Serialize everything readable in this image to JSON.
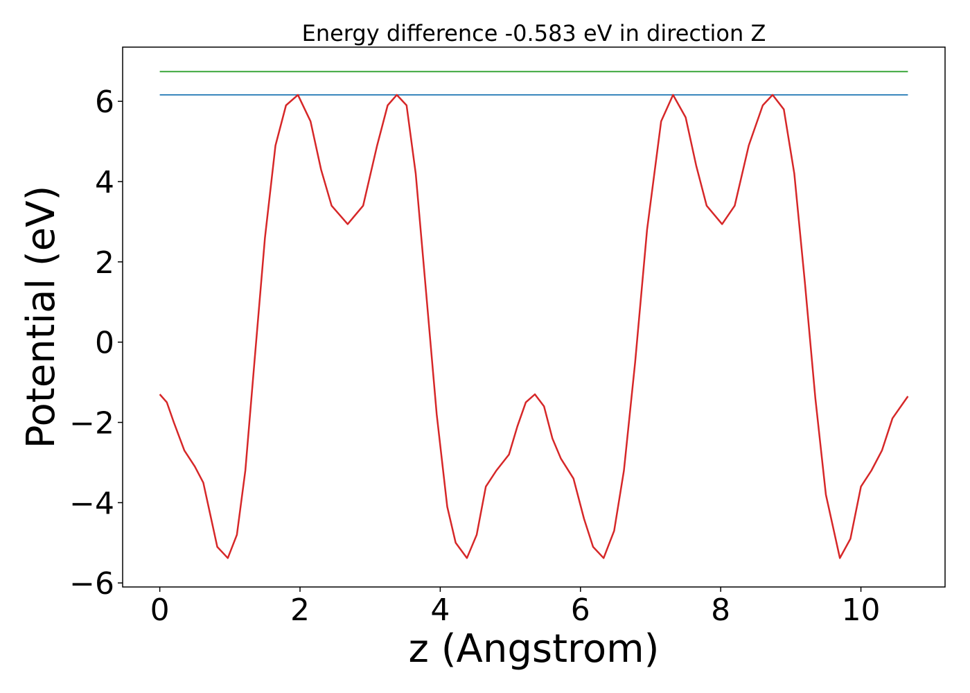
{
  "chart_data": {
    "type": "line",
    "title": "Energy difference -0.583 eV in direction Z",
    "xlabel": "z (Angstrom)",
    "ylabel": "Potential (eV)",
    "xlim": [
      -0.53,
      11.2
    ],
    "ylim": [
      -6.1,
      7.35
    ],
    "xticks": [
      0,
      2,
      4,
      6,
      8,
      10
    ],
    "yticks": [
      -6,
      -4,
      -2,
      0,
      2,
      4,
      6
    ],
    "xtick_labels": [
      "0",
      "2",
      "4",
      "6",
      "8",
      "10"
    ],
    "ytick_labels": [
      "−6",
      "−4",
      "−2",
      "0",
      "2",
      "4",
      "6"
    ],
    "grid": false,
    "legend": "none",
    "series": [
      {
        "color": "#2ca02c",
        "x": [
          0,
          10.67
        ],
        "y": [
          6.74,
          6.74
        ]
      },
      {
        "color": "#1f77b4",
        "x": [
          0,
          10.67
        ],
        "y": [
          6.16,
          6.16
        ]
      },
      {
        "color": "#d62728",
        "x": [
          0.0,
          0.1,
          0.2,
          0.35,
          0.5,
          0.62,
          0.72,
          0.82,
          0.97,
          1.1,
          1.22,
          1.35,
          1.5,
          1.65,
          1.8,
          1.97,
          2.15,
          2.3,
          2.45,
          2.68,
          2.9,
          3.1,
          3.25,
          3.38,
          3.52,
          3.65,
          3.8,
          3.95,
          4.1,
          4.22,
          4.38,
          4.52,
          4.65,
          4.8,
          4.98,
          5.1,
          5.22,
          5.35,
          5.48,
          5.6,
          5.72,
          5.9,
          6.05,
          6.18,
          6.33,
          6.48,
          6.62,
          6.78,
          6.95,
          7.15,
          7.32,
          7.5,
          7.65,
          7.8,
          8.02,
          8.2,
          8.4,
          8.6,
          8.74,
          8.9,
          9.05,
          9.2,
          9.35,
          9.5,
          9.7,
          9.85,
          10.0,
          10.15,
          10.3,
          10.45,
          10.67
        ],
        "y": [
          -1.3,
          -1.5,
          -2.0,
          -2.7,
          -3.1,
          -3.5,
          -4.3,
          -5.1,
          -5.38,
          -4.8,
          -3.2,
          -0.5,
          2.6,
          4.9,
          5.9,
          6.16,
          5.5,
          4.3,
          3.4,
          2.94,
          3.4,
          4.9,
          5.9,
          6.16,
          5.9,
          4.2,
          1.2,
          -1.8,
          -4.1,
          -5.0,
          -5.38,
          -4.8,
          -3.6,
          -3.2,
          -2.8,
          -2.1,
          -1.5,
          -1.3,
          -1.6,
          -2.4,
          -2.9,
          -3.4,
          -4.4,
          -5.1,
          -5.38,
          -4.7,
          -3.2,
          -0.5,
          2.8,
          5.5,
          6.16,
          5.6,
          4.4,
          3.4,
          2.94,
          3.4,
          4.9,
          5.9,
          6.16,
          5.8,
          4.2,
          1.5,
          -1.4,
          -3.8,
          -5.38,
          -4.9,
          -3.6,
          -3.2,
          -2.7,
          -1.9,
          -1.35
        ]
      }
    ]
  }
}
